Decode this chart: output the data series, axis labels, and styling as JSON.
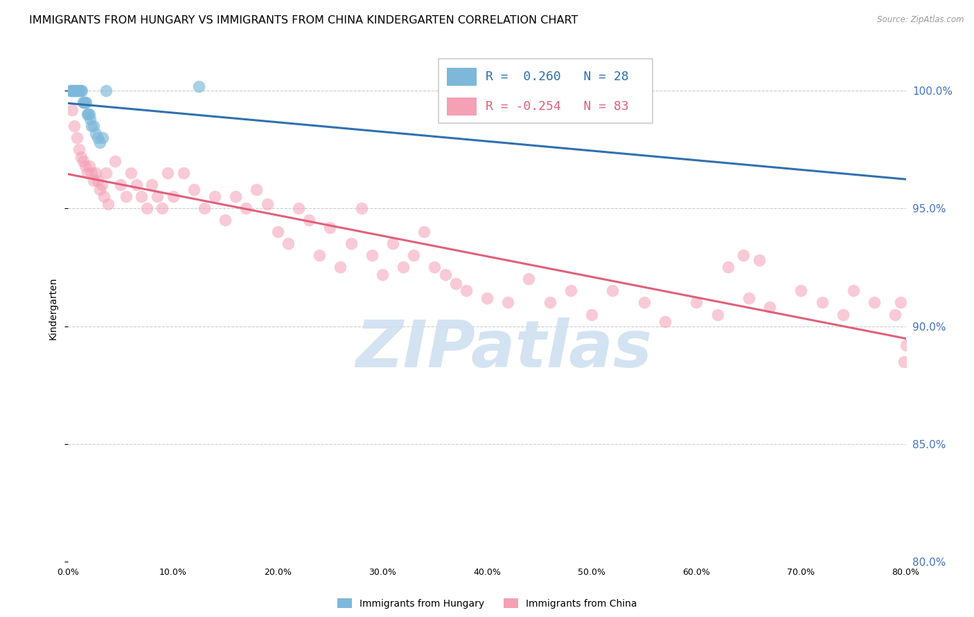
{
  "title": "IMMIGRANTS FROM HUNGARY VS IMMIGRANTS FROM CHINA KINDERGARTEN CORRELATION CHART",
  "source": "Source: ZipAtlas.com",
  "ylabel_left": "Kindergarten",
  "xlabel_legend_hungary": "Immigrants from Hungary",
  "xlabel_legend_china": "Immigrants from China",
  "xlim": [
    0.0,
    80.0
  ],
  "ylim": [
    80.0,
    101.5
  ],
  "yticks": [
    80.0,
    85.0,
    90.0,
    95.0,
    100.0
  ],
  "xticks": [
    0.0,
    10.0,
    20.0,
    30.0,
    40.0,
    50.0,
    60.0,
    70.0,
    80.0
  ],
  "r_hungary": 0.26,
  "n_hungary": 28,
  "r_china": -0.254,
  "n_china": 83,
  "hungary_color": "#7db8da",
  "china_color": "#f4a0b5",
  "hungary_line_color": "#3070b0",
  "china_line_color": "#e0607a",
  "watermark_text": "ZIPatlas",
  "watermark_color": "#ccdff0",
  "title_fontsize": 11.5,
  "axis_label_fontsize": 10,
  "tick_fontsize": 9,
  "right_tick_color": "#4472c4",
  "hungary_scatter_x": [
    0.2,
    0.3,
    0.4,
    0.5,
    0.6,
    0.7,
    0.8,
    0.9,
    1.0,
    1.1,
    1.2,
    1.3,
    1.4,
    1.5,
    1.6,
    1.7,
    1.8,
    1.9,
    2.0,
    2.1,
    2.2,
    2.4,
    2.6,
    2.8,
    3.0,
    3.3,
    3.6,
    12.5
  ],
  "hungary_scatter_y": [
    100.0,
    100.0,
    100.0,
    100.0,
    100.0,
    100.0,
    100.0,
    100.0,
    100.0,
    100.0,
    100.0,
    100.0,
    99.5,
    99.5,
    99.5,
    99.5,
    99.0,
    99.0,
    99.0,
    98.8,
    98.5,
    98.5,
    98.2,
    98.0,
    97.8,
    98.0,
    100.0,
    100.2
  ],
  "china_scatter_x": [
    0.4,
    0.6,
    0.8,
    1.0,
    1.2,
    1.4,
    1.6,
    1.8,
    2.0,
    2.2,
    2.4,
    2.6,
    2.8,
    3.0,
    3.2,
    3.4,
    3.6,
    3.8,
    4.5,
    5.0,
    5.5,
    6.0,
    6.5,
    7.0,
    7.5,
    8.0,
    8.5,
    9.0,
    9.5,
    10.0,
    11.0,
    12.0,
    13.0,
    14.0,
    15.0,
    16.0,
    17.0,
    18.0,
    19.0,
    20.0,
    21.0,
    22.0,
    23.0,
    24.0,
    25.0,
    26.0,
    27.0,
    28.0,
    29.0,
    30.0,
    31.0,
    32.0,
    33.0,
    34.0,
    35.0,
    36.0,
    37.0,
    38.0,
    40.0,
    42.0,
    44.0,
    46.0,
    48.0,
    50.0,
    52.0,
    55.0,
    57.0,
    60.0,
    62.0,
    65.0,
    67.0,
    70.0,
    72.0,
    74.0,
    75.0,
    77.0,
    79.0,
    79.5,
    79.8,
    80.0,
    63.0,
    64.5,
    66.0
  ],
  "china_scatter_y": [
    99.2,
    98.5,
    98.0,
    97.5,
    97.2,
    97.0,
    96.8,
    96.5,
    96.8,
    96.5,
    96.2,
    96.5,
    96.2,
    95.8,
    96.0,
    95.5,
    96.5,
    95.2,
    97.0,
    96.0,
    95.5,
    96.5,
    96.0,
    95.5,
    95.0,
    96.0,
    95.5,
    95.0,
    96.5,
    95.5,
    96.5,
    95.8,
    95.0,
    95.5,
    94.5,
    95.5,
    95.0,
    95.8,
    95.2,
    94.0,
    93.5,
    95.0,
    94.5,
    93.0,
    94.2,
    92.5,
    93.5,
    95.0,
    93.0,
    92.2,
    93.5,
    92.5,
    93.0,
    94.0,
    92.5,
    92.2,
    91.8,
    91.5,
    91.2,
    91.0,
    92.0,
    91.0,
    91.5,
    90.5,
    91.5,
    91.0,
    90.2,
    91.0,
    90.5,
    91.2,
    90.8,
    91.5,
    91.0,
    90.5,
    91.5,
    91.0,
    90.5,
    91.0,
    88.5,
    89.2,
    92.5,
    93.0,
    92.8
  ]
}
